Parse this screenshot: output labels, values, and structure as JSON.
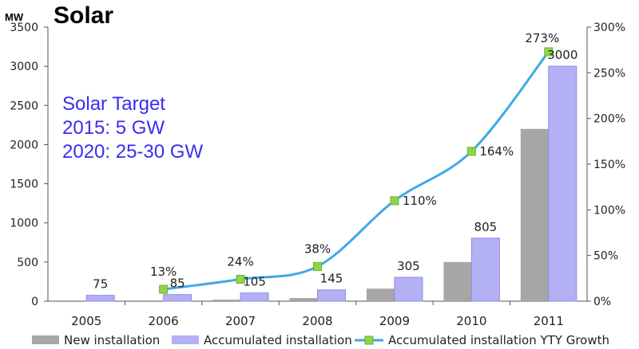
{
  "chart_data": {
    "type": "bar",
    "title": "Solar",
    "y_unit": "MW",
    "categories": [
      "2005",
      "2006",
      "2007",
      "2008",
      "2009",
      "2010",
      "2011"
    ],
    "series": [
      {
        "name": "New installation",
        "type": "bar",
        "axis": "left",
        "color": "#a6a6a6",
        "values": [
          0,
          10,
          20,
          40,
          160,
          500,
          2200
        ]
      },
      {
        "name": "Accumulated installation",
        "type": "bar",
        "axis": "left",
        "color": "#b3b0f5",
        "values": [
          75,
          85,
          105,
          145,
          305,
          805,
          3000
        ],
        "labels": [
          "75",
          "85",
          "105",
          "145",
          "305",
          "805",
          "3000"
        ]
      },
      {
        "name": "Accumulated installation YTY Growth",
        "type": "line",
        "axis": "right",
        "color": "#3fa9e8",
        "marker_color": "#8fd44a",
        "values": [
          null,
          13,
          24,
          38,
          110,
          164,
          273
        ],
        "labels": [
          null,
          "13%",
          "24%",
          "38%",
          "110%",
          "164%",
          "273%"
        ]
      }
    ],
    "y_left": {
      "min": 0,
      "max": 3500,
      "ticks": [
        "0",
        "500",
        "1000",
        "1500",
        "2000",
        "2500",
        "3000",
        "3500"
      ]
    },
    "y_right": {
      "min": 0,
      "max": 300,
      "ticks": [
        "0%",
        "50%",
        "100%",
        "150%",
        "200%",
        "250%",
        "300%"
      ]
    },
    "annotation": [
      "Solar Target",
      "2015: 5 GW",
      "2020: 25-30 GW"
    ],
    "legend_position": "bottom",
    "grid": false
  }
}
